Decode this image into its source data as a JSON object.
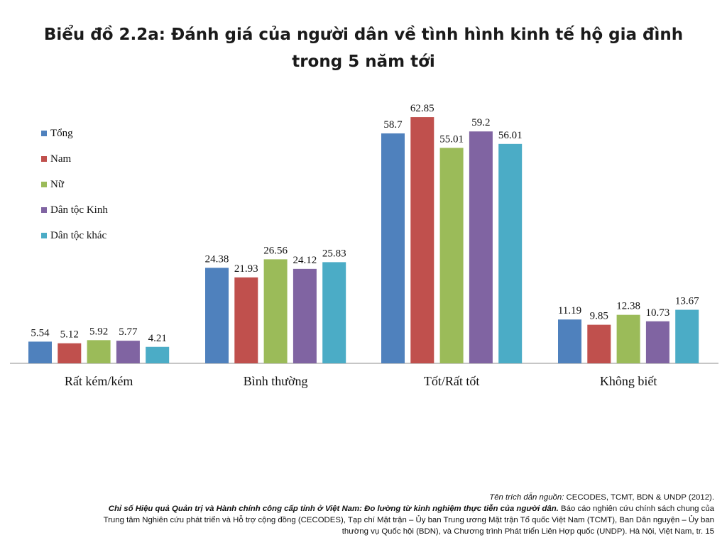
{
  "title_line1": "Biểu đồ 2.2a: Đánh giá của người dân về tình hình kinh tế hộ gia đình",
  "title_line2": "trong 5 năm tới",
  "chart_data": {
    "type": "bar",
    "title": "Biểu đồ 2.2a: Đánh giá của người dân về tình hình kinh tế hộ gia đình trong 5 năm tới",
    "categories": [
      "Rất kém/kém",
      "Bình thường",
      "Tốt/Rất tốt",
      "Không biết"
    ],
    "series": [
      {
        "name": "Tổng",
        "color": "#4F81BD",
        "values": [
          5.54,
          24.38,
          58.7,
          11.19
        ],
        "labels": [
          "5.54",
          "24.38",
          "58.7",
          "11.19"
        ]
      },
      {
        "name": "Nam",
        "color": "#C0504D",
        "values": [
          5.12,
          21.93,
          62.85,
          9.85
        ],
        "labels": [
          "5.12",
          "21.93",
          "62.85",
          "9.85"
        ]
      },
      {
        "name": "Nữ",
        "color": "#9BBB59",
        "values": [
          5.92,
          26.56,
          55.01,
          12.38
        ],
        "labels": [
          "5.92",
          "26.56",
          "55.01",
          "12.38"
        ]
      },
      {
        "name": "Dân tộc Kinh",
        "color": "#8064A2",
        "values": [
          5.77,
          24.12,
          59.2,
          10.73
        ],
        "labels": [
          "5.77",
          "24.12",
          "59.2",
          "10.73"
        ]
      },
      {
        "name": "Dân tộc khác",
        "color": "#4BACC6",
        "values": [
          4.21,
          25.83,
          56.01,
          13.67
        ],
        "labels": [
          "4.21",
          "25.83",
          "56.01",
          "13.67"
        ]
      }
    ],
    "ylim": [
      0,
      70
    ],
    "grid": false,
    "legend_position": "top-left"
  },
  "footer": {
    "line1_italic": "Tên trích dẫn nguồn:",
    "line1_rest": " CECODES, TCMT, BDN & UNDP (2012).",
    "line2_bold": "Chỉ số Hiệu quả Quản trị và Hành chính công cấp tỉnh ở Việt Nam: Đo lường từ kinh nghiệm thực tiễn của người dân.",
    "line2_rest": " Báo cáo nghiên cứu chính sách chung của",
    "line3": "Trung tâm Nghiên cứu phát triển và Hỗ trợ cộng đồng (CECODES), Tạp chí Mặt trận – Ủy ban Trung ương Mặt trận Tổ quốc Việt Nam (TCMT), Ban Dân nguyện – Ủy ban",
    "line4": "thường vụ Quốc hội (BDN), và Chương trình Phát triển Liên Hợp quốc (UNDP). Hà Nội, Việt Nam, tr. 15"
  }
}
